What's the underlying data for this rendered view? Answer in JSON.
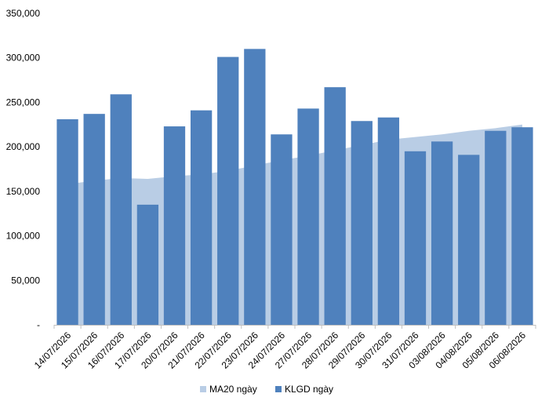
{
  "chart_data": {
    "type": "bar",
    "categories": [
      "14/07/2026",
      "15/07/2026",
      "16/07/2026",
      "17/07/2026",
      "20/07/2026",
      "21/07/2026",
      "22/07/2026",
      "23/07/2026",
      "24/07/2026",
      "27/07/2026",
      "28/07/2026",
      "29/07/2026",
      "30/07/2026",
      "31/07/2026",
      "03/08/2026",
      "04/08/2026",
      "05/08/2026",
      "06/08/2026"
    ],
    "series": [
      {
        "name": "MA20 ngày",
        "type": "area",
        "color": "#b9cde5",
        "values": [
          158000,
          162000,
          165000,
          164000,
          167000,
          169000,
          173000,
          179000,
          185000,
          190000,
          196000,
          202000,
          208000,
          211000,
          214000,
          218000,
          221000,
          225000
        ]
      },
      {
        "name": "KLGD ngày",
        "type": "bar",
        "color": "#4f81bd",
        "values": [
          231000,
          237000,
          259000,
          135000,
          223000,
          241000,
          301000,
          310000,
          214000,
          243000,
          267000,
          229000,
          233000,
          195000,
          206000,
          191000,
          218000,
          222000
        ]
      }
    ],
    "yticks": [
      "-",
      "50,000",
      "100,000",
      "150,000",
      "200,000",
      "250,000",
      "300,000",
      "350,000"
    ],
    "ylim": [
      0,
      350000
    ],
    "grid": false,
    "legend": "bottom-center"
  }
}
